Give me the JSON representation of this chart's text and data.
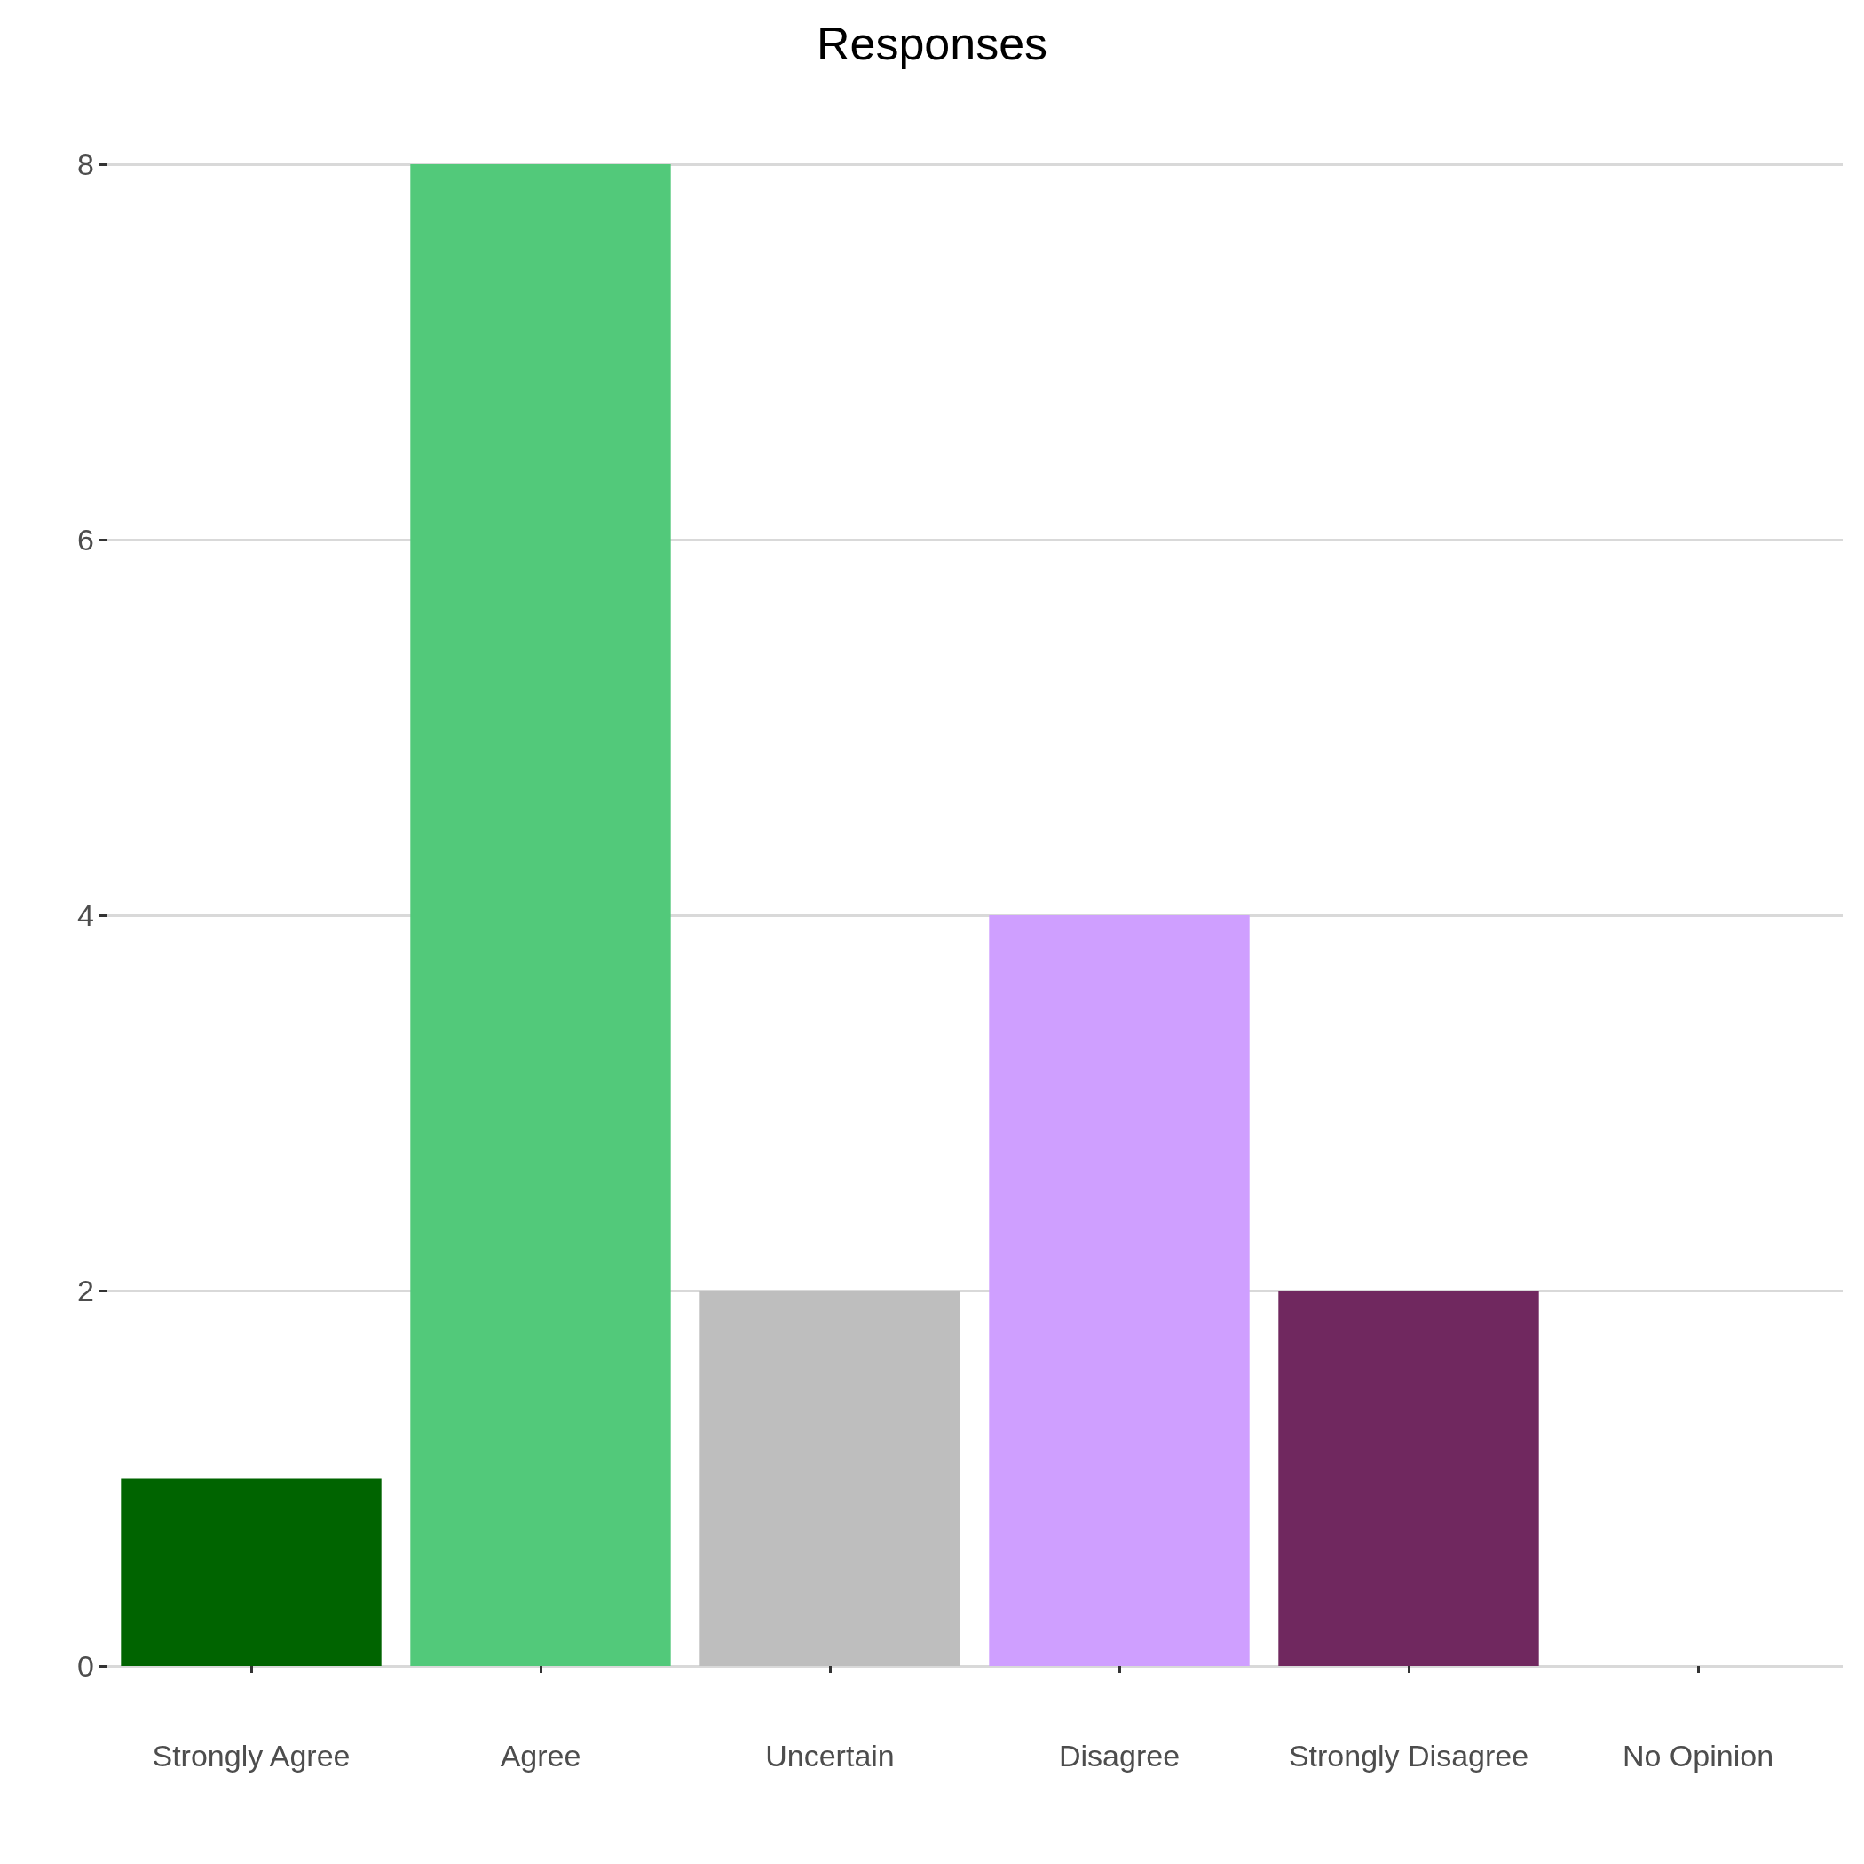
{
  "chart_data": {
    "type": "bar",
    "title": "Responses",
    "categories": [
      "Strongly Agree",
      "Agree",
      "Uncertain",
      "Disagree",
      "Strongly Disagree",
      "No Opinion"
    ],
    "values": [
      1,
      8,
      2,
      4,
      2,
      0
    ],
    "colors": [
      "#006400",
      "#52c97a",
      "#bebebe",
      "#cf9fff",
      "#70285f",
      "#888888"
    ],
    "ylim": [
      0,
      8
    ],
    "yticks": [
      0,
      2,
      4,
      6,
      8
    ],
    "grid": "y"
  }
}
